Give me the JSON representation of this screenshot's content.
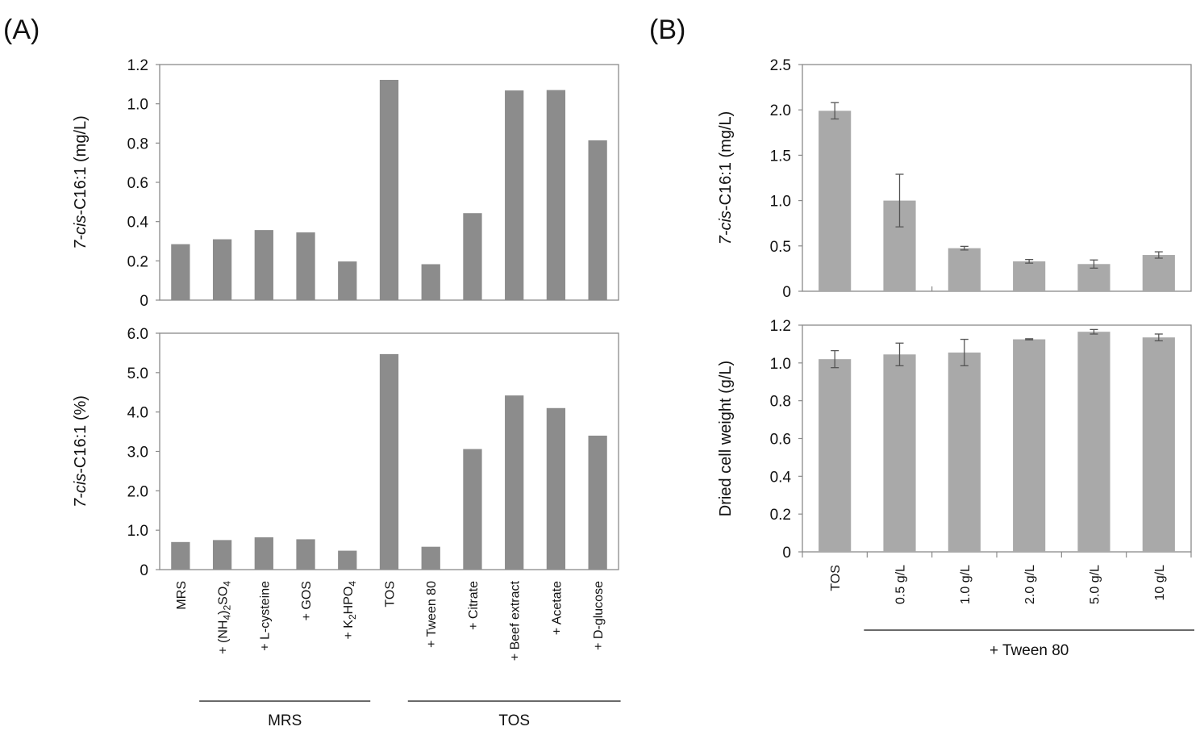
{
  "figure": {
    "panel_a_label": "(A)",
    "panel_b_label": "(B)"
  },
  "chart_data": [
    {
      "type": "bar",
      "panel": "A",
      "ylabel_italic": "7-cis",
      "ylabel_rest": "-C16:1 (mg/L)",
      "ylim": [
        0,
        1.2
      ],
      "yticks": [
        "0",
        "0.2",
        "0.4",
        "0.6",
        "0.8",
        "1.0",
        "1.2"
      ],
      "categories": [
        "MRS",
        "+ (NH4)2SO4",
        "+ L-cysteine",
        "+ GOS",
        "+ K2HPO4",
        "TOS",
        "+ Tween 80",
        "+ Citrate",
        "+ Beef extract",
        "+ Acetate",
        "+ D-glucose"
      ],
      "values": [
        0.285,
        0.31,
        0.357,
        0.345,
        0.197,
        1.122,
        0.183,
        0.443,
        1.068,
        1.07,
        0.814
      ],
      "bar_color": "#8c8c8c"
    },
    {
      "type": "bar",
      "panel": "A",
      "ylabel_italic": "7-cis",
      "ylabel_rest": "-C16:1 (%)",
      "ylim": [
        0,
        6
      ],
      "yticks": [
        "0",
        "1.0",
        "2.0",
        "3.0",
        "4.0",
        "5.0",
        "6.0"
      ],
      "categories": [
        "MRS",
        "+ (NH4)2SO4",
        "+ L-cysteine",
        "+ GOS",
        "+ K2HPO4",
        "TOS",
        "+ Tween 80",
        "+ Citrate",
        "+ Beef extract",
        "+ Acetate",
        "+ D-glucose"
      ],
      "values": [
        0.7,
        0.75,
        0.82,
        0.77,
        0.48,
        5.47,
        0.58,
        3.06,
        4.42,
        4.1,
        3.4
      ],
      "bar_color": "#8c8c8c",
      "x_group_labels": [
        {
          "label": "MRS",
          "from": 1,
          "to": 4
        },
        {
          "label": "TOS",
          "from": 6,
          "to": 10
        }
      ]
    },
    {
      "type": "bar",
      "panel": "B",
      "ylabel_italic": "7-cis",
      "ylabel_rest": "-C16:1 (mg/L)",
      "ylim": [
        0,
        2.5
      ],
      "yticks": [
        "0",
        "0.5",
        "1.0",
        "1.5",
        "2.0",
        "2.5"
      ],
      "categories": [
        "TOS",
        "0.5 g/L",
        "1.0 g/L",
        "2.0 g/L",
        "5.0 g/L",
        "10 g/L"
      ],
      "values": [
        1.99,
        1.0,
        0.475,
        0.33,
        0.3,
        0.4
      ],
      "errors": [
        0.09,
        0.29,
        0.02,
        0.02,
        0.045,
        0.035
      ],
      "bar_color": "#a9a9a9"
    },
    {
      "type": "bar",
      "panel": "B",
      "ylabel": "Dried cell weight (g/L)",
      "ylim": [
        0,
        1.2
      ],
      "yticks": [
        "0",
        "0.2",
        "0.4",
        "0.6",
        "0.8",
        "1.0",
        "1.2"
      ],
      "categories": [
        "TOS",
        "0.5 g/L",
        "1.0 g/L",
        "2.0 g/L",
        "5.0 g/L",
        "10 g/L"
      ],
      "values": [
        1.02,
        1.045,
        1.055,
        1.125,
        1.165,
        1.135
      ],
      "errors": [
        0.045,
        0.06,
        0.07,
        0.003,
        0.012,
        0.018
      ],
      "bar_color": "#a9a9a9",
      "x_group_labels": [
        {
          "label": "+ Tween 80",
          "from": 1,
          "to": 5
        }
      ]
    }
  ]
}
